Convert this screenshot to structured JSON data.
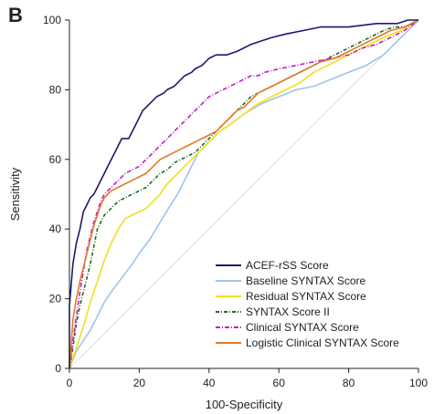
{
  "panel_label": "B",
  "chart_data": {
    "type": "line",
    "xlabel": "100-Specificity",
    "ylabel": "Sensitivity",
    "xlim": [
      0,
      100
    ],
    "ylim": [
      0,
      100
    ],
    "xticks": [
      "0",
      "20",
      "40",
      "60",
      "80",
      "100"
    ],
    "yticks": [
      "0",
      "20",
      "40",
      "60",
      "80",
      "100"
    ],
    "grid": false,
    "legend_position": "bottom-right",
    "reference_line": [
      [
        0,
        0
      ],
      [
        100,
        100
      ]
    ],
    "series": [
      {
        "name": "ACEF-rSS Score",
        "color": "#1a1a6e",
        "dash": "solid",
        "points": [
          [
            0,
            0
          ],
          [
            0,
            18
          ],
          [
            1,
            30
          ],
          [
            2,
            36
          ],
          [
            3,
            40
          ],
          [
            4,
            45
          ],
          [
            5,
            47
          ],
          [
            6,
            49
          ],
          [
            7,
            50
          ],
          [
            8,
            52
          ],
          [
            9,
            54
          ],
          [
            10,
            56
          ],
          [
            11,
            58
          ],
          [
            12,
            60
          ],
          [
            13,
            62
          ],
          [
            14,
            64
          ],
          [
            15,
            66
          ],
          [
            17,
            66
          ],
          [
            18,
            68
          ],
          [
            19,
            70
          ],
          [
            20,
            72
          ],
          [
            21,
            74
          ],
          [
            23,
            76
          ],
          [
            25,
            78
          ],
          [
            27,
            79
          ],
          [
            28,
            80
          ],
          [
            30,
            81
          ],
          [
            31,
            82
          ],
          [
            32,
            83
          ],
          [
            33,
            84
          ],
          [
            35,
            85
          ],
          [
            36,
            86
          ],
          [
            38,
            87
          ],
          [
            40,
            89
          ],
          [
            42,
            90
          ],
          [
            45,
            90
          ],
          [
            48,
            91
          ],
          [
            52,
            93
          ],
          [
            55,
            94
          ],
          [
            58,
            95
          ],
          [
            62,
            96
          ],
          [
            67,
            97
          ],
          [
            72,
            98
          ],
          [
            80,
            98
          ],
          [
            88,
            99
          ],
          [
            94,
            99
          ],
          [
            97,
            100
          ],
          [
            100,
            100
          ]
        ]
      },
      {
        "name": "Baseline SYNTAX Score",
        "color": "#9ec4ea",
        "dash": "solid",
        "points": [
          [
            0,
            0
          ],
          [
            2,
            5
          ],
          [
            4,
            8
          ],
          [
            6,
            11
          ],
          [
            8,
            15
          ],
          [
            10,
            19
          ],
          [
            12,
            22
          ],
          [
            15,
            26
          ],
          [
            18,
            30
          ],
          [
            20,
            33
          ],
          [
            23,
            37
          ],
          [
            26,
            42
          ],
          [
            29,
            47
          ],
          [
            31,
            50
          ],
          [
            33,
            54
          ],
          [
            35,
            58
          ],
          [
            37,
            62
          ],
          [
            40,
            65
          ],
          [
            43,
            68
          ],
          [
            46,
            70
          ],
          [
            50,
            73
          ],
          [
            55,
            76
          ],
          [
            60,
            78
          ],
          [
            65,
            80
          ],
          [
            70,
            81
          ],
          [
            75,
            83
          ],
          [
            80,
            85
          ],
          [
            85,
            87
          ],
          [
            90,
            90
          ],
          [
            95,
            95
          ],
          [
            100,
            100
          ]
        ]
      },
      {
        "name": "Residual SYNTAX Score",
        "color": "#f0e020",
        "dash": "solid",
        "points": [
          [
            0,
            0
          ],
          [
            2,
            6
          ],
          [
            4,
            12
          ],
          [
            6,
            19
          ],
          [
            8,
            25
          ],
          [
            10,
            31
          ],
          [
            12,
            36
          ],
          [
            14,
            40
          ],
          [
            16,
            43
          ],
          [
            18,
            44
          ],
          [
            20,
            45
          ],
          [
            22,
            46
          ],
          [
            24,
            48
          ],
          [
            26,
            50
          ],
          [
            28,
            53
          ],
          [
            30,
            55
          ],
          [
            32,
            57
          ],
          [
            34,
            59
          ],
          [
            36,
            61
          ],
          [
            38,
            63
          ],
          [
            40,
            65
          ],
          [
            43,
            68
          ],
          [
            46,
            70
          ],
          [
            50,
            73
          ],
          [
            54,
            76
          ],
          [
            58,
            78
          ],
          [
            62,
            80
          ],
          [
            66,
            82
          ],
          [
            70,
            85
          ],
          [
            74,
            87
          ],
          [
            78,
            89
          ],
          [
            82,
            91
          ],
          [
            86,
            93
          ],
          [
            90,
            95
          ],
          [
            95,
            97
          ],
          [
            100,
            100
          ]
        ]
      },
      {
        "name": "SYNTAX Score II",
        "color": "#1e6b1e",
        "dash": "4,2,1,2",
        "points": [
          [
            0,
            0
          ],
          [
            1,
            6
          ],
          [
            2,
            13
          ],
          [
            3,
            18
          ],
          [
            4,
            22
          ],
          [
            5,
            26
          ],
          [
            6,
            30
          ],
          [
            7,
            35
          ],
          [
            8,
            40
          ],
          [
            9,
            42
          ],
          [
            10,
            44
          ],
          [
            11,
            45
          ],
          [
            12,
            46
          ],
          [
            14,
            48
          ],
          [
            16,
            49
          ],
          [
            18,
            50
          ],
          [
            20,
            51
          ],
          [
            22,
            52
          ],
          [
            24,
            54
          ],
          [
            26,
            56
          ],
          [
            28,
            57
          ],
          [
            30,
            59
          ],
          [
            32,
            60
          ],
          [
            34,
            61
          ],
          [
            36,
            62
          ],
          [
            38,
            64
          ],
          [
            40,
            66
          ],
          [
            42,
            68
          ],
          [
            44,
            70
          ],
          [
            46,
            72
          ],
          [
            48,
            74
          ],
          [
            50,
            76
          ],
          [
            52,
            78
          ],
          [
            54,
            79
          ],
          [
            56,
            80
          ],
          [
            58,
            81
          ],
          [
            60,
            82
          ],
          [
            64,
            84
          ],
          [
            68,
            86
          ],
          [
            72,
            88
          ],
          [
            76,
            90
          ],
          [
            80,
            92
          ],
          [
            84,
            94
          ],
          [
            88,
            96
          ],
          [
            90,
            97
          ],
          [
            93,
            98
          ],
          [
            96,
            98
          ],
          [
            100,
            100
          ]
        ]
      },
      {
        "name": "Clinical SYNTAX Score",
        "color": "#c020c0",
        "dash": "5,2,1,2",
        "points": [
          [
            0,
            0
          ],
          [
            1,
            8
          ],
          [
            2,
            15
          ],
          [
            3,
            22
          ],
          [
            4,
            28
          ],
          [
            5,
            34
          ],
          [
            6,
            38
          ],
          [
            7,
            42
          ],
          [
            8,
            45
          ],
          [
            9,
            48
          ],
          [
            10,
            50
          ],
          [
            12,
            52
          ],
          [
            14,
            54
          ],
          [
            16,
            56
          ],
          [
            18,
            57
          ],
          [
            20,
            58
          ],
          [
            22,
            60
          ],
          [
            24,
            62
          ],
          [
            26,
            64
          ],
          [
            28,
            66
          ],
          [
            30,
            68
          ],
          [
            32,
            70
          ],
          [
            34,
            72
          ],
          [
            36,
            74
          ],
          [
            38,
            76
          ],
          [
            40,
            78
          ],
          [
            42,
            79
          ],
          [
            44,
            80
          ],
          [
            46,
            81
          ],
          [
            48,
            82
          ],
          [
            50,
            83
          ],
          [
            52,
            84
          ],
          [
            54,
            84
          ],
          [
            56,
            85
          ],
          [
            60,
            86
          ],
          [
            65,
            87
          ],
          [
            70,
            88
          ],
          [
            75,
            89
          ],
          [
            80,
            90
          ],
          [
            84,
            92
          ],
          [
            88,
            93
          ],
          [
            92,
            95
          ],
          [
            96,
            97
          ],
          [
            100,
            100
          ]
        ]
      },
      {
        "name": "Logistic Clinical SYNTAX Score",
        "color": "#e07a2a",
        "dash": "solid",
        "points": [
          [
            0,
            0
          ],
          [
            1,
            14
          ],
          [
            2,
            20
          ],
          [
            3,
            25
          ],
          [
            4,
            29
          ],
          [
            5,
            33
          ],
          [
            6,
            37
          ],
          [
            7,
            41
          ],
          [
            8,
            44
          ],
          [
            9,
            47
          ],
          [
            10,
            49
          ],
          [
            11,
            50
          ],
          [
            12,
            51
          ],
          [
            14,
            52
          ],
          [
            16,
            53
          ],
          [
            18,
            54
          ],
          [
            20,
            55
          ],
          [
            22,
            56
          ],
          [
            24,
            58
          ],
          [
            26,
            60
          ],
          [
            28,
            61
          ],
          [
            30,
            62
          ],
          [
            32,
            63
          ],
          [
            34,
            64
          ],
          [
            36,
            65
          ],
          [
            38,
            66
          ],
          [
            40,
            67
          ],
          [
            42,
            68
          ],
          [
            44,
            70
          ],
          [
            46,
            72
          ],
          [
            48,
            74
          ],
          [
            50,
            75
          ],
          [
            52,
            77
          ],
          [
            54,
            79
          ],
          [
            56,
            80
          ],
          [
            58,
            81
          ],
          [
            60,
            82
          ],
          [
            64,
            84
          ],
          [
            68,
            86
          ],
          [
            72,
            88
          ],
          [
            76,
            89
          ],
          [
            80,
            91
          ],
          [
            84,
            93
          ],
          [
            88,
            95
          ],
          [
            92,
            97
          ],
          [
            96,
            98
          ],
          [
            100,
            100
          ]
        ]
      }
    ]
  }
}
